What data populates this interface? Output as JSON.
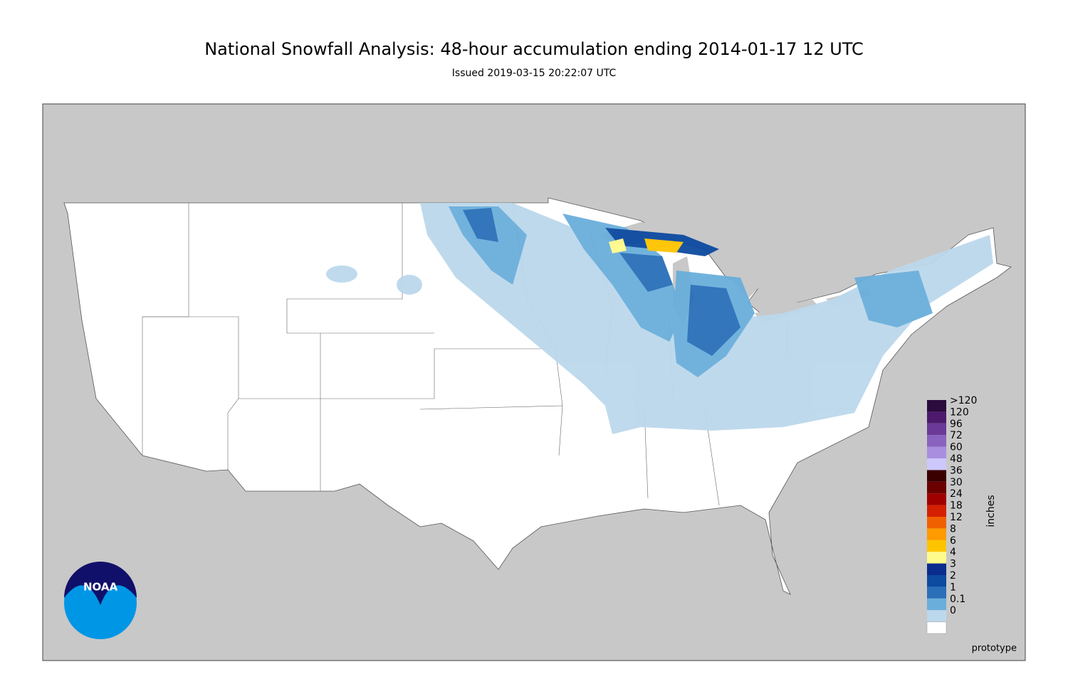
{
  "header": {
    "title": "National Snowfall Analysis: 48-hour accumulation ending 2014-01-17 12 UTC",
    "subtitle": "Issued 2019-03-15 20:22:07 UTC"
  },
  "legend": {
    "title": "inches",
    "items": [
      {
        "label": ">120",
        "color": "#2b0a3d"
      },
      {
        "label": "120",
        "color": "#4d1a6e"
      },
      {
        "label": "96",
        "color": "#6b3a99"
      },
      {
        "label": "72",
        "color": "#8a62bf"
      },
      {
        "label": "60",
        "color": "#a98ee0"
      },
      {
        "label": "48",
        "color": "#cdc8fb"
      },
      {
        "label": "36",
        "color": "#3a0000"
      },
      {
        "label": "30",
        "color": "#6b0000"
      },
      {
        "label": "24",
        "color": "#a00000"
      },
      {
        "label": "18",
        "color": "#d42000"
      },
      {
        "label": "12",
        "color": "#f06000"
      },
      {
        "label": "8",
        "color": "#ff9a00"
      },
      {
        "label": "6",
        "color": "#ffc400"
      },
      {
        "label": "4",
        "color": "#fffa8c"
      },
      {
        "label": "3",
        "color": "#0a2c8c"
      },
      {
        "label": "2",
        "color": "#0d4aa0"
      },
      {
        "label": "1",
        "color": "#2a6fb8"
      },
      {
        "label": "0.1",
        "color": "#6aaedc"
      },
      {
        "label": "0",
        "color": "#bcd8ec"
      }
    ]
  },
  "footer": {
    "note": "prototype"
  },
  "logo": {
    "text": "NOAA"
  }
}
